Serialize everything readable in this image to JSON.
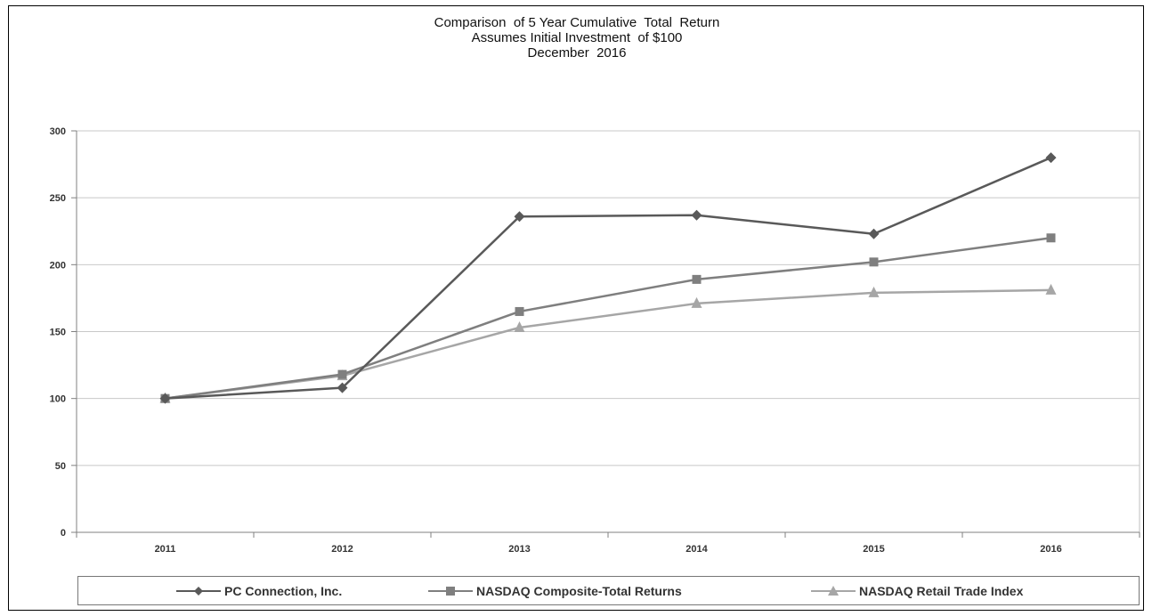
{
  "chart_data": {
    "type": "line",
    "title_lines": [
      "Comparison  of 5 Year Cumulative  Total  Return",
      "Assumes Initial Investment  of $100",
      "December  2016"
    ],
    "xlabel": "",
    "ylabel": "",
    "categories": [
      "2011",
      "2012",
      "2013",
      "2014",
      "2015",
      "2016"
    ],
    "yticks": [
      "0",
      "50",
      "100",
      "150",
      "200",
      "250",
      "300"
    ],
    "ylim": [
      0,
      300
    ],
    "grid": true,
    "legend_position": "bottom",
    "series": [
      {
        "name": "PC Connection, Inc.",
        "marker": "diamond",
        "color": "#595959",
        "values": [
          100,
          108,
          236,
          237,
          223,
          280
        ]
      },
      {
        "name": "NASDAQ Composite-Total Returns",
        "marker": "square",
        "color": "#7f7f7f",
        "values": [
          100,
          118,
          165,
          189,
          202,
          220
        ]
      },
      {
        "name": "NASDAQ Retail Trade Index",
        "marker": "triangle",
        "color": "#a6a6a6",
        "values": [
          100,
          117,
          153,
          171,
          179,
          181
        ]
      }
    ]
  }
}
